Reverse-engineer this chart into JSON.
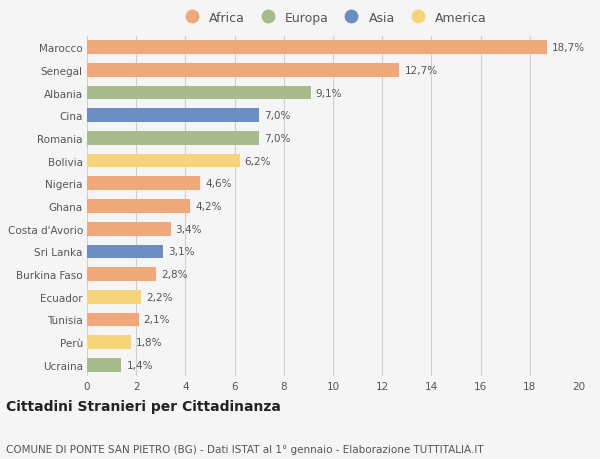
{
  "categories": [
    "Marocco",
    "Senegal",
    "Albania",
    "Cina",
    "Romania",
    "Bolivia",
    "Nigeria",
    "Ghana",
    "Costa d'Avorio",
    "Sri Lanka",
    "Burkina Faso",
    "Ecuador",
    "Tunisia",
    "Perù",
    "Ucraina"
  ],
  "values": [
    18.7,
    12.7,
    9.1,
    7.0,
    7.0,
    6.2,
    4.6,
    4.2,
    3.4,
    3.1,
    2.8,
    2.2,
    2.1,
    1.8,
    1.4
  ],
  "labels": [
    "18,7%",
    "12,7%",
    "9,1%",
    "7,0%",
    "7,0%",
    "6,2%",
    "4,6%",
    "4,2%",
    "3,4%",
    "3,1%",
    "2,8%",
    "2,2%",
    "2,1%",
    "1,8%",
    "1,4%"
  ],
  "continents": [
    "Africa",
    "Africa",
    "Europa",
    "Asia",
    "Europa",
    "America",
    "Africa",
    "Africa",
    "Africa",
    "Asia",
    "Africa",
    "America",
    "Africa",
    "America",
    "Europa"
  ],
  "colors": {
    "Africa": "#F0A87A",
    "Europa": "#A8BB8C",
    "Asia": "#6B8DC2",
    "America": "#F5D47A"
  },
  "legend_order": [
    "Africa",
    "Europa",
    "Asia",
    "America"
  ],
  "background_color": "#f5f5f5",
  "title": "Cittadini Stranieri per Cittadinanza",
  "subtitle": "COMUNE DI PONTE SAN PIETRO (BG) - Dati ISTAT al 1° gennaio - Elaborazione TUTTITALIA.IT",
  "xlim": [
    0,
    20
  ],
  "xticks": [
    0,
    2,
    4,
    6,
    8,
    10,
    12,
    14,
    16,
    18,
    20
  ],
  "grid_color": "#d0d0d0",
  "bar_height": 0.6,
  "label_fontsize": 7.5,
  "tick_fontsize": 7.5,
  "title_fontsize": 10,
  "subtitle_fontsize": 7.5,
  "legend_fontsize": 9
}
